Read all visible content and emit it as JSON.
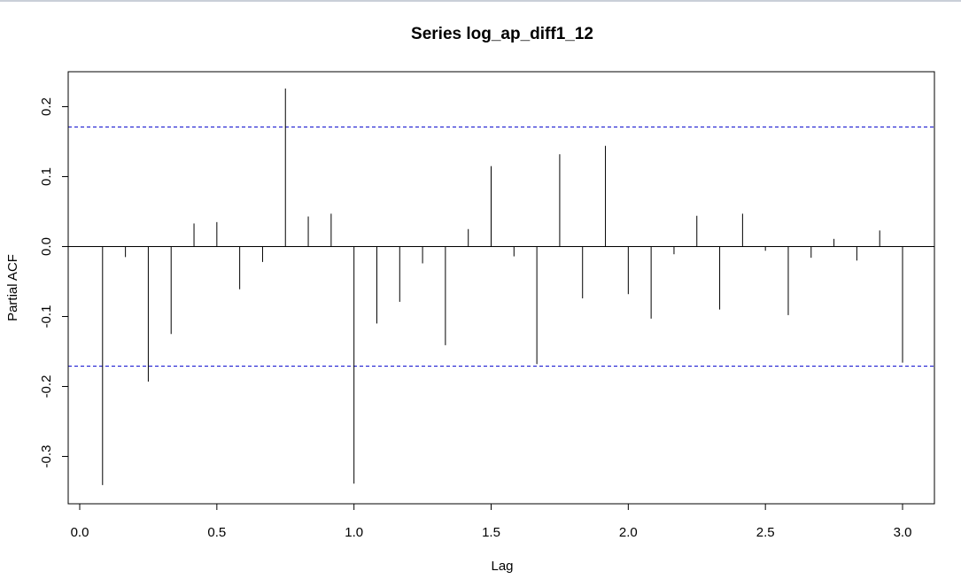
{
  "chart_data": {
    "type": "bar",
    "title": "Series  log_ap_diff1_12",
    "xlabel": "Lag",
    "ylabel": "Partial ACF",
    "xlim": [
      0,
      3.0
    ],
    "ylim": [
      -0.35,
      0.23
    ],
    "x_ticks": [
      0.0,
      0.5,
      1.0,
      1.5,
      2.0,
      2.5,
      3.0
    ],
    "x_tick_labels": [
      "0.0",
      "0.5",
      "1.0",
      "1.5",
      "2.0",
      "2.5",
      "3.0"
    ],
    "y_ticks": [
      -0.3,
      -0.2,
      -0.1,
      0.0,
      0.1,
      0.2
    ],
    "y_tick_labels": [
      "-0.3",
      "-0.2",
      "-0.1",
      "0.0",
      "0.1",
      "0.2"
    ],
    "confidence_bounds": [
      0.171,
      -0.171
    ],
    "confidence_color": "#0000cc",
    "bar_color": "#000000",
    "grid": false,
    "legend": "none",
    "x": [
      0.0833,
      0.1667,
      0.25,
      0.3333,
      0.4167,
      0.5,
      0.5833,
      0.6667,
      0.75,
      0.8333,
      0.9167,
      1.0,
      1.0833,
      1.1667,
      1.25,
      1.3333,
      1.4167,
      1.5,
      1.5833,
      1.6667,
      1.75,
      1.8333,
      1.9167,
      2.0,
      2.0833,
      2.1667,
      2.25,
      2.3333,
      2.4167,
      2.5,
      2.5833,
      2.6667,
      2.75,
      2.8333,
      2.9167,
      3.0
    ],
    "values": [
      -0.341,
      -0.015,
      -0.193,
      -0.125,
      0.033,
      0.035,
      -0.061,
      -0.022,
      0.226,
      0.043,
      0.047,
      -0.339,
      -0.11,
      -0.079,
      -0.024,
      -0.141,
      0.025,
      0.115,
      -0.014,
      -0.168,
      0.132,
      -0.074,
      0.144,
      -0.068,
      -0.103,
      -0.011,
      0.044,
      -0.09,
      0.047,
      -0.006,
      -0.098,
      -0.016,
      0.011,
      -0.02,
      0.023,
      -0.166
    ]
  }
}
